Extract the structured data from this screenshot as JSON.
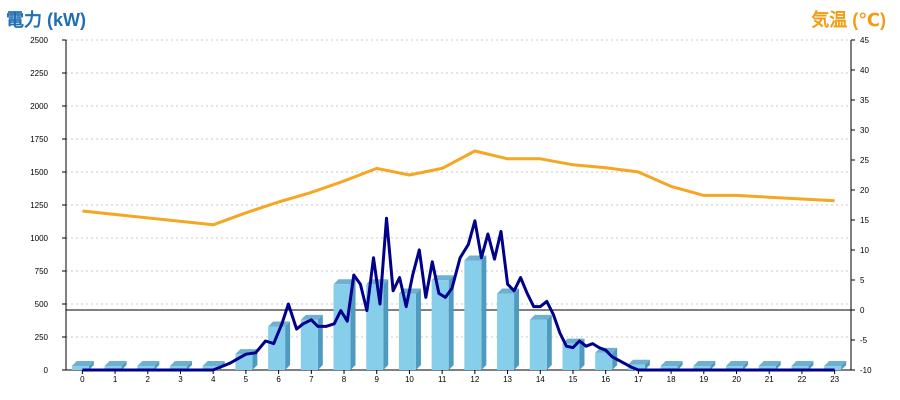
{
  "chart_data": {
    "type": "bar",
    "title_left": "電力 (kW)",
    "title_right": "気温 (℃)",
    "categories": [
      "0",
      "1",
      "2",
      "3",
      "4",
      "5",
      "6",
      "7",
      "8",
      "9",
      "10",
      "11",
      "12",
      "13",
      "14",
      "15",
      "16",
      "17",
      "18",
      "19",
      "20",
      "21",
      "22",
      "23"
    ],
    "y_left": {
      "min": 0,
      "max": 2500,
      "ticks": [
        0,
        250,
        500,
        750,
        1000,
        1250,
        1500,
        1750,
        2000,
        2250,
        2500
      ]
    },
    "y_right": {
      "min": -10,
      "max": 45,
      "ticks": [
        -10,
        -5,
        0,
        5,
        10,
        15,
        20,
        25,
        30,
        35,
        40,
        45
      ]
    },
    "grid": true,
    "zero_line_right": 0,
    "series": [
      {
        "kind": "bar",
        "axis": "left",
        "color": "#87ceeb",
        "values": [
          30,
          30,
          30,
          30,
          30,
          120,
          330,
          380,
          650,
          650,
          580,
          680,
          830,
          580,
          380,
          200,
          130,
          40,
          30,
          30,
          30,
          30,
          30,
          30
        ]
      },
      {
        "kind": "line",
        "axis": "right",
        "color": "#f5a623",
        "x": [
          0,
          4,
          5,
          6,
          7,
          8,
          9,
          10,
          11,
          12,
          13,
          14,
          15,
          16,
          17,
          18,
          19,
          20,
          21,
          22,
          23
        ],
        "values": [
          16.5,
          14.2,
          16.2,
          18,
          19.6,
          21.5,
          23.6,
          22.5,
          23.6,
          26.5,
          25.2,
          25.2,
          24.2,
          23.7,
          23,
          20.6,
          19.1,
          19.1,
          18.8,
          18.5,
          18.2
        ]
      },
      {
        "kind": "line",
        "axis": "left",
        "color": "#00008b",
        "x": [
          0,
          4,
          4.5,
          5,
          5.3,
          5.6,
          5.85,
          6.1,
          6.3,
          6.55,
          6.75,
          7,
          7.2,
          7.45,
          7.7,
          7.9,
          8.1,
          8.3,
          8.5,
          8.7,
          8.9,
          9.1,
          9.3,
          9.5,
          9.7,
          9.9,
          10.1,
          10.3,
          10.5,
          10.7,
          10.9,
          11.1,
          11.3,
          11.55,
          11.8,
          12,
          12.2,
          12.4,
          12.6,
          12.8,
          13,
          13.2,
          13.4,
          13.6,
          13.8,
          14,
          14.2,
          14.4,
          14.6,
          14.8,
          15,
          15.2,
          15.4,
          15.6,
          15.8,
          16,
          16.2,
          16.5,
          16.8,
          17,
          23
        ],
        "values": [
          0,
          0,
          50,
          120,
          130,
          220,
          200,
          350,
          500,
          310,
          350,
          380,
          330,
          330,
          350,
          450,
          370,
          720,
          650,
          450,
          850,
          500,
          1150,
          600,
          700,
          480,
          720,
          910,
          550,
          820,
          580,
          550,
          620,
          850,
          950,
          1130,
          850,
          1030,
          840,
          1050,
          650,
          600,
          700,
          580,
          480,
          480,
          520,
          420,
          280,
          180,
          170,
          220,
          180,
          200,
          170,
          150,
          100,
          60,
          20,
          0,
          0
        ]
      }
    ]
  }
}
